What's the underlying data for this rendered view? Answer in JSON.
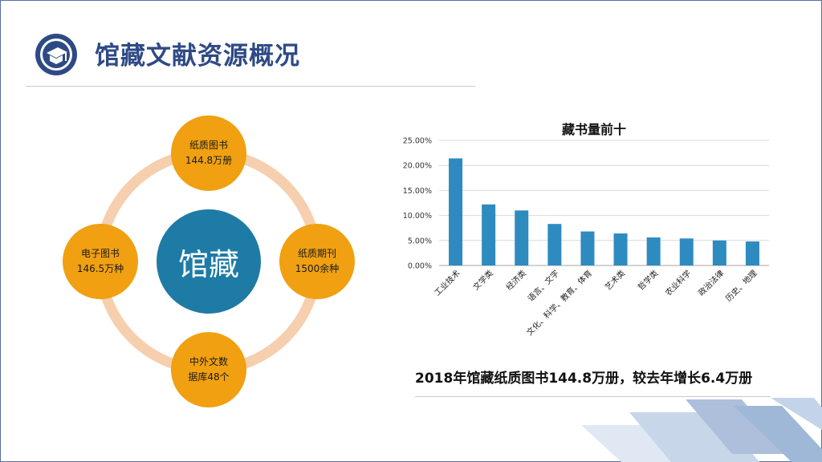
{
  "header": {
    "title": "馆藏文献资源概况",
    "icon": "graduation-cap-icon",
    "accent_color": "#2e4a86"
  },
  "diagram": {
    "center": "馆藏",
    "nodes": {
      "top": {
        "line1": "纸质图书",
        "line2": "144.8万册"
      },
      "right": {
        "line1": "纸质期刊",
        "line2": "1500余种"
      },
      "bottom": {
        "line1": "中外文数",
        "line2": "据库48个"
      },
      "left": {
        "line1": "电子图书",
        "line2": "146.5万种"
      }
    },
    "colors": {
      "node": "#f0a010",
      "center": "#1e7ba5",
      "ring": "#f5cfae"
    }
  },
  "chart_data": {
    "type": "bar",
    "title": "藏书量前十",
    "categories": [
      "工业技术",
      "文学类",
      "经济类",
      "语言、文字",
      "文化、科学、教育、体育",
      "艺术类",
      "哲学类",
      "农业科学",
      "政治法律",
      "历史、地理"
    ],
    "values": [
      0.214,
      0.122,
      0.11,
      0.083,
      0.068,
      0.064,
      0.056,
      0.054,
      0.05,
      0.048
    ],
    "ylim": [
      0,
      0.25
    ],
    "yticks": [
      "0.00%",
      "5.00%",
      "10.00%",
      "15.00%",
      "20.00%",
      "25.00%"
    ],
    "grid": true,
    "bar_color": "#2e8bc0"
  },
  "caption": "2018年馆藏纸质图书144.8万册，较去年增长6.4万册"
}
